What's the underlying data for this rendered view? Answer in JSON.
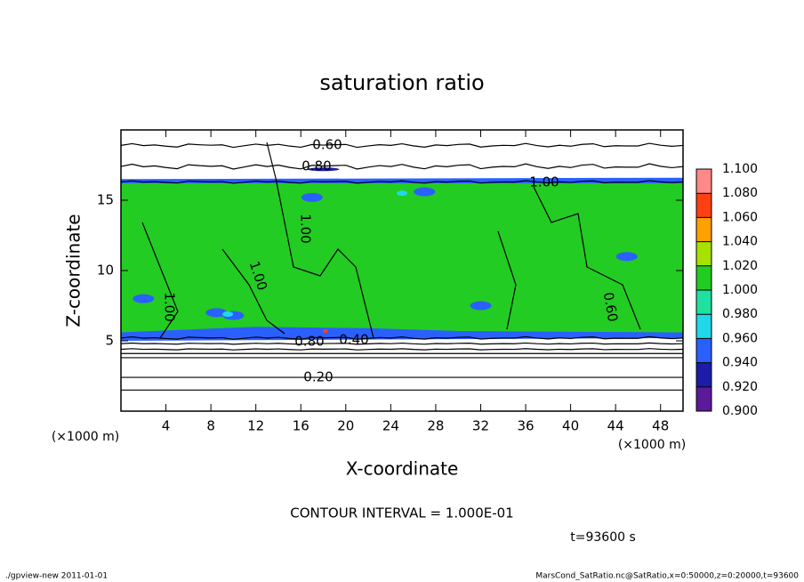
{
  "chart_data": {
    "type": "contour",
    "title": "saturation ratio",
    "x_label": "X-coordinate",
    "y_label": "Z-coordinate",
    "x_unit": "(×1000 m)",
    "xlim": [
      0,
      50
    ],
    "xticks": [
      4,
      8,
      12,
      16,
      20,
      24,
      28,
      32,
      36,
      40,
      44,
      48
    ],
    "ylim": [
      0,
      20
    ],
    "yticks": [
      5,
      10,
      15
    ],
    "colorbar": {
      "levels": [
        {
          "value": 0.9,
          "label": "0.900"
        },
        {
          "value": 0.92,
          "label": "0.920"
        },
        {
          "value": 0.94,
          "label": "0.940"
        },
        {
          "value": 0.96,
          "label": "0.960"
        },
        {
          "value": 0.98,
          "label": "0.980"
        },
        {
          "value": 1.0,
          "label": "1.000"
        },
        {
          "value": 1.02,
          "label": "1.020"
        },
        {
          "value": 1.04,
          "label": "1.040"
        },
        {
          "value": 1.06,
          "label": "1.060"
        },
        {
          "value": 1.08,
          "label": "1.080"
        },
        {
          "value": 1.1,
          "label": "1.100"
        }
      ],
      "colors": [
        "#5a1a9a",
        "#1c1ca8",
        "#2a60ff",
        "#20d8e8",
        "#20e0a0",
        "#22cc22",
        "#a8e000",
        "#ffa000",
        "#ff4010",
        "#ff8888"
      ]
    },
    "contour_labels": [
      {
        "value": 0.6,
        "label": "0.60"
      },
      {
        "value": 0.8,
        "label": "0.80"
      },
      {
        "value": 1.0,
        "label": "1.00"
      },
      {
        "value": 1.0,
        "label": "1.00"
      },
      {
        "value": 1.0,
        "label": "1.00"
      },
      {
        "value": 1.0,
        "label": "1.00"
      },
      {
        "value": 0.6,
        "label": "0.60"
      },
      {
        "value": 0.8,
        "label": "0.80"
      },
      {
        "value": 0.4,
        "label": "0.40"
      },
      {
        "value": 0.2,
        "label": "0.20"
      }
    ],
    "contour_interval": "CONTOUR INTERVAL = 1.000E-01",
    "time_label": "t=93600 s",
    "footer_left": "./gpview-new  2011-01-01",
    "footer_right": "MarsCond_SatRatio.nc@SatRatio,x=0:50000,z=0:20000,t=93600"
  }
}
